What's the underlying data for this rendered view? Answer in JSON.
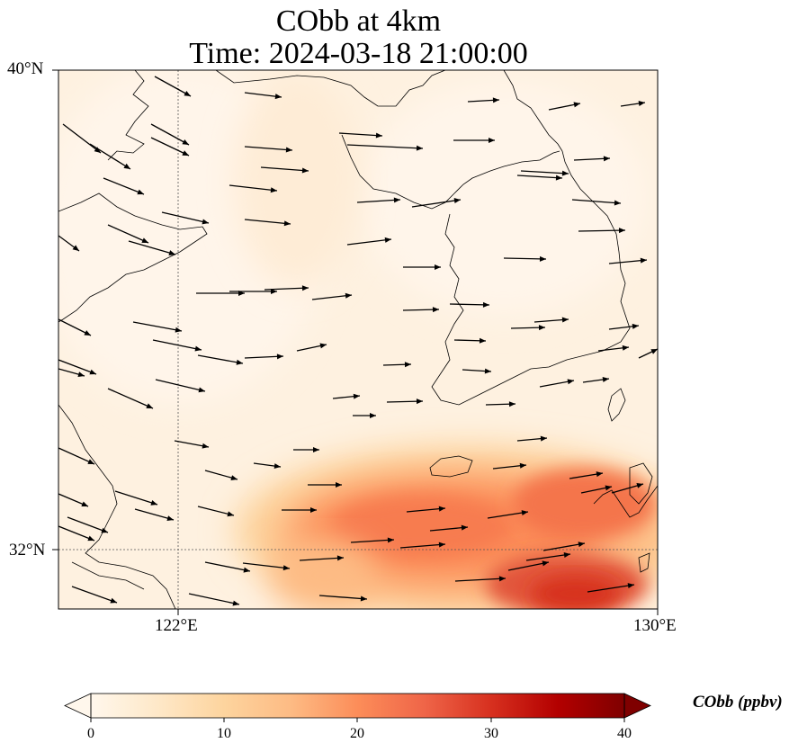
{
  "title": {
    "line1": "CObb at 4km",
    "line2": "Time: 2024-03-18 21:00:00"
  },
  "axes": {
    "lat_ticks": [
      "40°N",
      "32°N"
    ],
    "lon_ticks": [
      "122°E",
      "130°E"
    ],
    "lon_range": [
      120,
      130
    ],
    "lat_range": [
      31,
      40
    ],
    "gridlines": "dotted at 122°E and 32°N"
  },
  "colorbar": {
    "label": "CObb (ppbv)",
    "ticks": [
      "0",
      "10",
      "20",
      "30",
      "40"
    ],
    "range": [
      0,
      40
    ],
    "colormap": "OrRd",
    "extend": "both",
    "colors": [
      "#fff7ec",
      "#fee8c8",
      "#fdd49e",
      "#fdbb84",
      "#fc8d59",
      "#ef6548",
      "#d7301f",
      "#b30000",
      "#7f0000"
    ]
  },
  "chart_data": {
    "type": "heatmap",
    "title": "CObb at 4km",
    "subtitle": "Time: 2024-03-18 21:00:00",
    "variable": "CObb",
    "units": "ppbv",
    "field_pattern": "low (0-5 ppbv) over north and west; plume of 15-27 ppbv over East China Sea south of Jeju (~31-33.5°N, 124.5-130°E)",
    "hotspots": [
      {
        "lon": 126.4,
        "lat": 32.4,
        "value": 24
      },
      {
        "lon": 128.5,
        "lat": 31.4,
        "value": 27
      },
      {
        "lon": 129.5,
        "lat": 32.2,
        "value": 22
      }
    ],
    "wind_vectors": "westerly to west-northwesterly flow across the domain"
  }
}
